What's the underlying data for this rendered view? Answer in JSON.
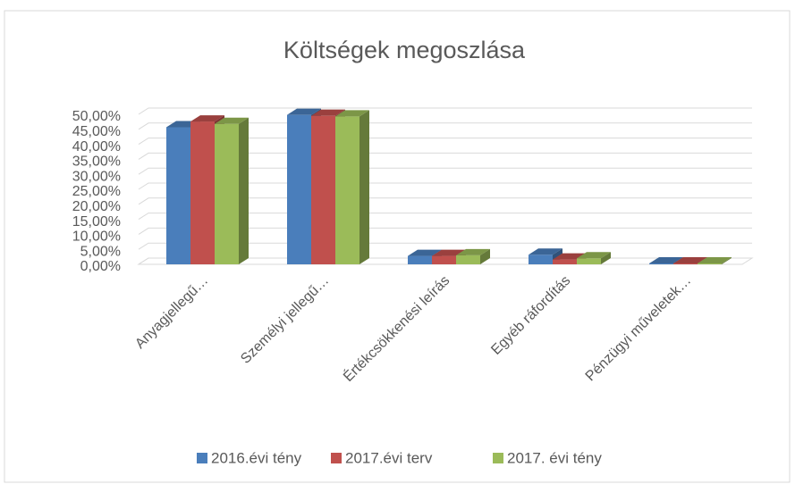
{
  "chart_data": {
    "type": "bar3d",
    "title": "Költségek megoszlása",
    "categories": [
      "Anyagjellegű…",
      "Személyi jellegű…",
      "Értékcsökkenési leírás",
      "Egyéb ráfordítás",
      "Pénzügyi műveletek…"
    ],
    "series": [
      {
        "name": "2016.évi tény",
        "color": "#4a7ebb",
        "values": [
          45.7,
          49.8,
          2.8,
          3.2,
          0.3
        ]
      },
      {
        "name": "2017.évi terv",
        "color": "#c0504d",
        "values": [
          47.6,
          49.5,
          2.8,
          1.6,
          0.3
        ]
      },
      {
        "name": "2017. évi tény",
        "color": "#9bbb59",
        "values": [
          46.8,
          49.3,
          3.0,
          2.0,
          0.3
        ]
      }
    ],
    "ylim": [
      0,
      50
    ],
    "yticks": [
      {
        "value": 0,
        "label": "0,00%"
      },
      {
        "value": 5,
        "label": "5,00%"
      },
      {
        "value": 10,
        "label": "10,00%"
      },
      {
        "value": 15,
        "label": "15,00%"
      },
      {
        "value": 20,
        "label": "20,00%"
      },
      {
        "value": 25,
        "label": "25,00%"
      },
      {
        "value": 30,
        "label": "30,00%"
      },
      {
        "value": 35,
        "label": "35,00%"
      },
      {
        "value": 40,
        "label": "40,00%"
      },
      {
        "value": 45,
        "label": "45,00%"
      },
      {
        "value": 50,
        "label": "50,00%"
      }
    ],
    "grid": true,
    "legend": "bottom"
  }
}
